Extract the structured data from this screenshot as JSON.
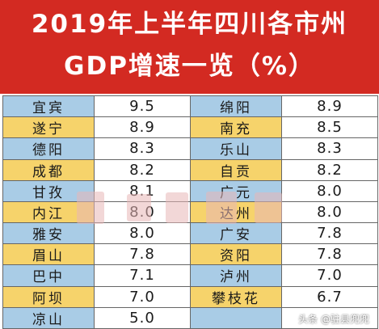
{
  "title": {
    "line1": "2019年上半年四川各市州",
    "line2": "GDP增速一览（%）"
  },
  "colors": {
    "header_bg": "#d32a22",
    "row_blue": "#a9cce6",
    "row_yellow": "#f6d36b"
  },
  "chart_data": {
    "type": "table",
    "title": "2019年上半年四川各市州GDP增速一览（%）",
    "rows": [
      {
        "left_city": "宜宾",
        "left_value": "9.5",
        "right_city": "绵阳",
        "right_value": "8.9"
      },
      {
        "left_city": "遂宁",
        "left_value": "8.9",
        "right_city": "南充",
        "right_value": "8.5"
      },
      {
        "left_city": "德阳",
        "left_value": "8.3",
        "right_city": "乐山",
        "right_value": "8.3"
      },
      {
        "left_city": "成都",
        "left_value": "8.2",
        "right_city": "自贡",
        "right_value": "8.2"
      },
      {
        "left_city": "甘孜",
        "left_value": "8.1",
        "right_city": "广元",
        "right_value": "8.0"
      },
      {
        "left_city": "内江",
        "left_value": "8.0",
        "right_city": "达州",
        "right_value": "8.0"
      },
      {
        "left_city": "雅安",
        "left_value": "8.0",
        "right_city": "广安",
        "right_value": "7.8"
      },
      {
        "left_city": "眉山",
        "left_value": "7.8",
        "right_city": "资阳",
        "right_value": "7.8"
      },
      {
        "left_city": "巴中",
        "left_value": "7.1",
        "right_city": "泸州",
        "right_value": "7.0"
      },
      {
        "left_city": "阿坝",
        "left_value": "7.0",
        "right_city": "攀枝花",
        "right_value": "6.7"
      },
      {
        "left_city": "凉山",
        "left_value": "5.0",
        "right_city": "",
        "right_value": ""
      }
    ]
  },
  "watermark": {
    "text": "头条 @驻县兜兜"
  }
}
